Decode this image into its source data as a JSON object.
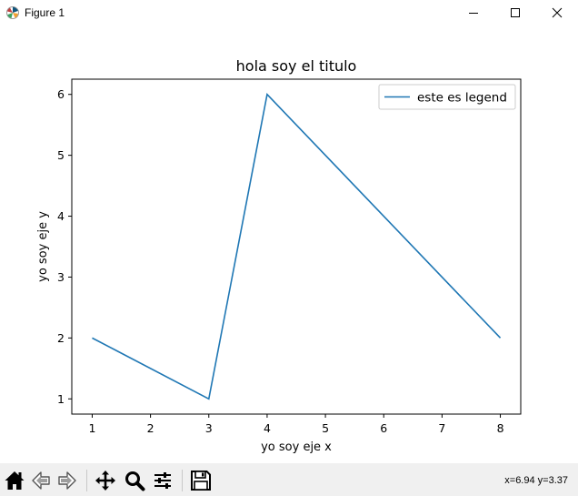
{
  "window": {
    "title": "Figure 1",
    "icon": "matplotlib-logo-icon",
    "controls": [
      "minimize-icon",
      "maximize-icon",
      "close-icon"
    ]
  },
  "chart_data": {
    "type": "line",
    "title": "hola soy el titulo",
    "xlabel": "yo soy eje x",
    "ylabel": "yo soy eje y",
    "x": [
      1,
      3,
      4,
      8
    ],
    "series": [
      {
        "name": "este es legend",
        "values": [
          2,
          1,
          6,
          2
        ],
        "color": "#1f77b4"
      }
    ],
    "xlim": [
      0.65,
      8.35
    ],
    "ylim": [
      0.75,
      6.25
    ],
    "xticks": [
      1,
      2,
      3,
      4,
      5,
      6,
      7,
      8
    ],
    "yticks": [
      1,
      2,
      3,
      4,
      5,
      6
    ],
    "grid": false,
    "legend_position": "top-right"
  },
  "toolbar": {
    "buttons": [
      "home-icon",
      "back-icon",
      "forward-icon",
      "pan-icon",
      "zoom-icon",
      "configure-subplots-icon",
      "save-icon"
    ],
    "coordinates": "x=6.94 y=3.37"
  }
}
